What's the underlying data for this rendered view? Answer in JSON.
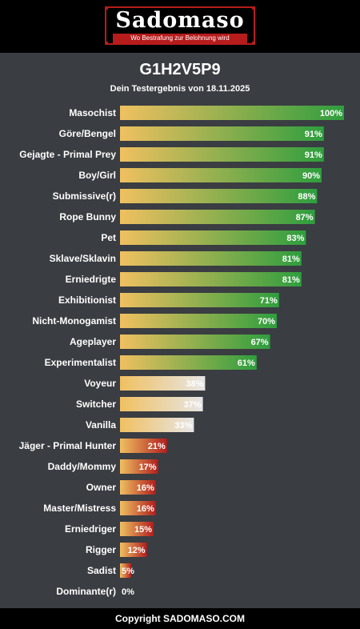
{
  "header": {
    "logo_text": "Sadomaso",
    "logo_tagline": "Wo Bestrafung zur Belohnung wird"
  },
  "title": "G1H2V5P9",
  "subtitle": "Dein Testergebnis von 18.11.2025",
  "footer": "Copyright SADOMASO.COM",
  "colors": {
    "background": "#3a3d42",
    "bar_start": "#f0c060",
    "high_end": "#2e9e3e",
    "mid_end": "#e6e6e6",
    "low_end": "#b01e1e"
  },
  "chart_data": {
    "type": "bar",
    "orientation": "horizontal",
    "xlim": [
      0,
      100
    ],
    "unit": "%",
    "categories": [
      "Masochist",
      "Göre/Bengel",
      "Gejagte - Primal Prey",
      "Boy/Girl",
      "Submissive(r)",
      "Rope Bunny",
      "Pet",
      "Sklave/Sklavin",
      "Erniedrigte",
      "Exhibitionist",
      "Nicht-Monogamist",
      "Ageplayer",
      "Experimentalist",
      "Voyeur",
      "Switcher",
      "Vanilla",
      "Jäger - Primal Hunter",
      "Daddy/Mommy",
      "Owner",
      "Master/Mistress",
      "Erniedriger",
      "Rigger",
      "Sadist",
      "Dominante(r)"
    ],
    "values": [
      100,
      91,
      91,
      90,
      88,
      87,
      83,
      81,
      81,
      71,
      70,
      67,
      61,
      38,
      37,
      33,
      21,
      17,
      16,
      16,
      15,
      12,
      5,
      0
    ],
    "labels": [
      "100%",
      "91%",
      "91%",
      "90%",
      "88%",
      "87%",
      "83%",
      "81%",
      "81%",
      "71%",
      "70%",
      "67%",
      "61%",
      "38%",
      "37%",
      "33%",
      "21%",
      "17%",
      "16%",
      "16%",
      "15%",
      "12%",
      "5%",
      "0%"
    ]
  }
}
